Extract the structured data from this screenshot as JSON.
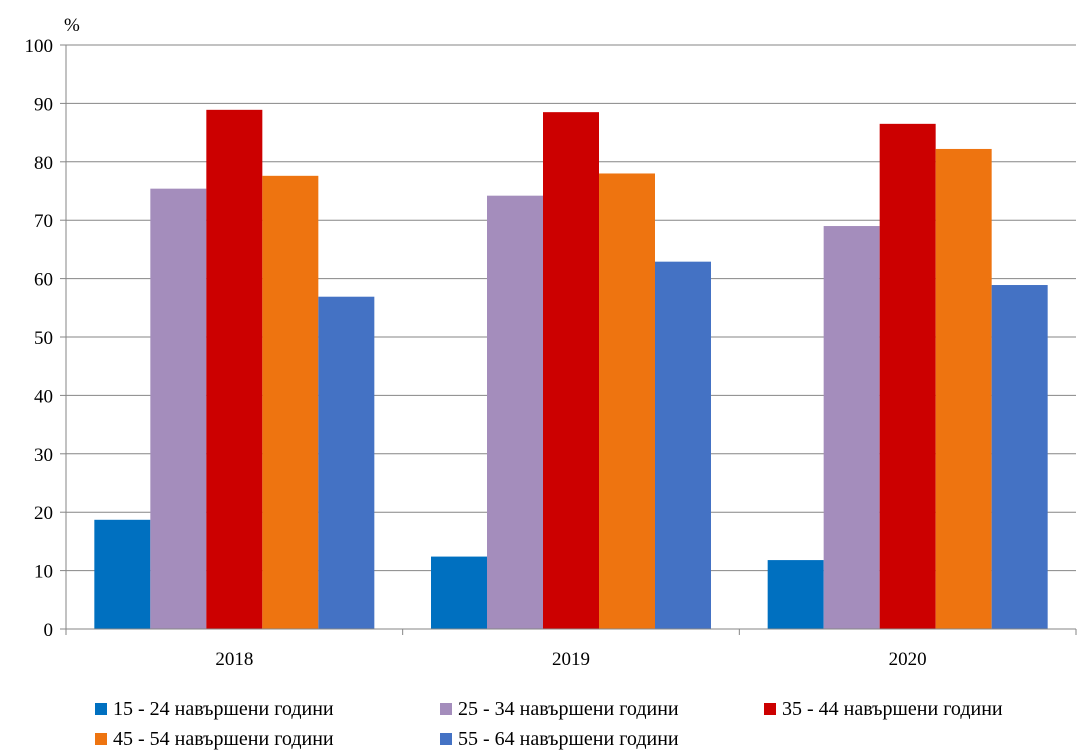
{
  "chart_data": {
    "type": "bar",
    "unit": "%",
    "categories": [
      "2018",
      "2019",
      "2020"
    ],
    "ylim": [
      0,
      100
    ],
    "yticks": [
      0,
      10,
      20,
      30,
      40,
      50,
      60,
      70,
      80,
      90,
      100
    ],
    "grid": true,
    "legend_position": "bottom",
    "series": [
      {
        "name": "15 - 24 навършени години",
        "color": "#0070c0",
        "values": [
          18.7,
          12.4,
          11.8
        ]
      },
      {
        "name": "25 - 34 навършени години",
        "color": "#a48dbc",
        "values": [
          75.4,
          74.2,
          69.0
        ]
      },
      {
        "name": "35 - 44 навършени години",
        "color": "#cc0000",
        "values": [
          88.9,
          88.5,
          86.5
        ]
      },
      {
        "name": "45 - 54 навършени години",
        "color": "#ee7410",
        "values": [
          77.6,
          78.0,
          82.2
        ]
      },
      {
        "name": "55 - 64 навършени години",
        "color": "#4472c4",
        "values": [
          56.9,
          62.9,
          58.9
        ]
      }
    ]
  }
}
